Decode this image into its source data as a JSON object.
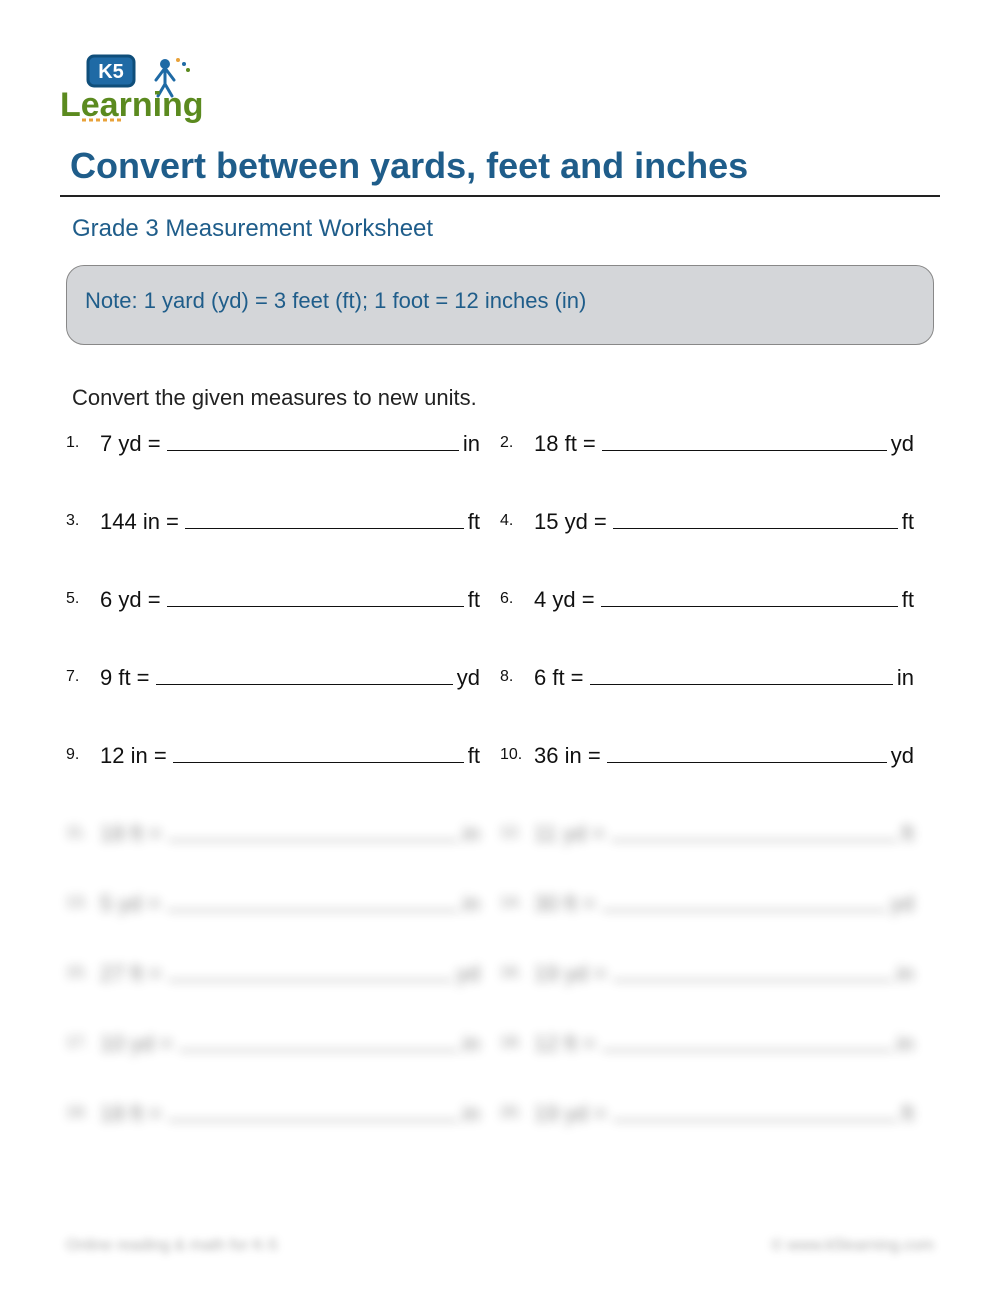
{
  "logo": {
    "text_k5": "K5",
    "text_learning": "Learning",
    "color_green": "#5b8a1f",
    "color_blue": "#1f6aa5",
    "color_blue_dark": "#0f4e7a",
    "color_orange": "#e8a23a"
  },
  "title": {
    "text": "Convert between yards, feet and inches",
    "color": "#1f5d8a"
  },
  "subtitle": {
    "text": "Grade 3 Measurement Worksheet",
    "color": "#1f5d8a"
  },
  "note": {
    "text": "Note:  1 yard (yd) = 3 feet (ft);  1 foot = 12 inches (in)",
    "color": "#1f5d8a",
    "background": "#d4d6d9"
  },
  "instruction": "Convert the given measures to new units.",
  "problems_clear": [
    {
      "num": "1.",
      "lhs": "7 yd  =",
      "unit": "in"
    },
    {
      "num": "2.",
      "lhs": "18 ft  =",
      "unit": "yd"
    },
    {
      "num": "3.",
      "lhs": "144 in  =",
      "unit": "ft"
    },
    {
      "num": "4.",
      "lhs": "15 yd  =",
      "unit": "ft"
    },
    {
      "num": "5.",
      "lhs": "6 yd  =",
      "unit": "ft"
    },
    {
      "num": "6.",
      "lhs": "4 yd  =",
      "unit": "ft"
    },
    {
      "num": "7.",
      "lhs": "9 ft  =",
      "unit": "yd"
    },
    {
      "num": "8.",
      "lhs": "6 ft  =",
      "unit": "in"
    },
    {
      "num": "9.",
      "lhs": "12 in  =",
      "unit": "ft"
    },
    {
      "num": "10.",
      "lhs": "36 in  =",
      "unit": "yd"
    }
  ],
  "problems_blurred": [
    {
      "num": "11.",
      "lhs": "18 ft  =",
      "unit": "in"
    },
    {
      "num": "12.",
      "lhs": "11 yd  =",
      "unit": "ft"
    },
    {
      "num": "13.",
      "lhs": "5 yd  =",
      "unit": "in"
    },
    {
      "num": "14.",
      "lhs": "30 ft  =",
      "unit": "yd"
    },
    {
      "num": "15.",
      "lhs": "27 ft  =",
      "unit": "yd"
    },
    {
      "num": "16.",
      "lhs": "19 yd  =",
      "unit": "in"
    },
    {
      "num": "17.",
      "lhs": "10 yd  =",
      "unit": "in"
    },
    {
      "num": "18.",
      "lhs": "12 ft  =",
      "unit": "in"
    },
    {
      "num": "19.",
      "lhs": "18 ft  =",
      "unit": "in"
    },
    {
      "num": "20.",
      "lhs": "19 yd  =",
      "unit": "ft"
    }
  ],
  "footer": {
    "left": "Online reading & math for K-5",
    "right": "© www.k5learning.com"
  }
}
